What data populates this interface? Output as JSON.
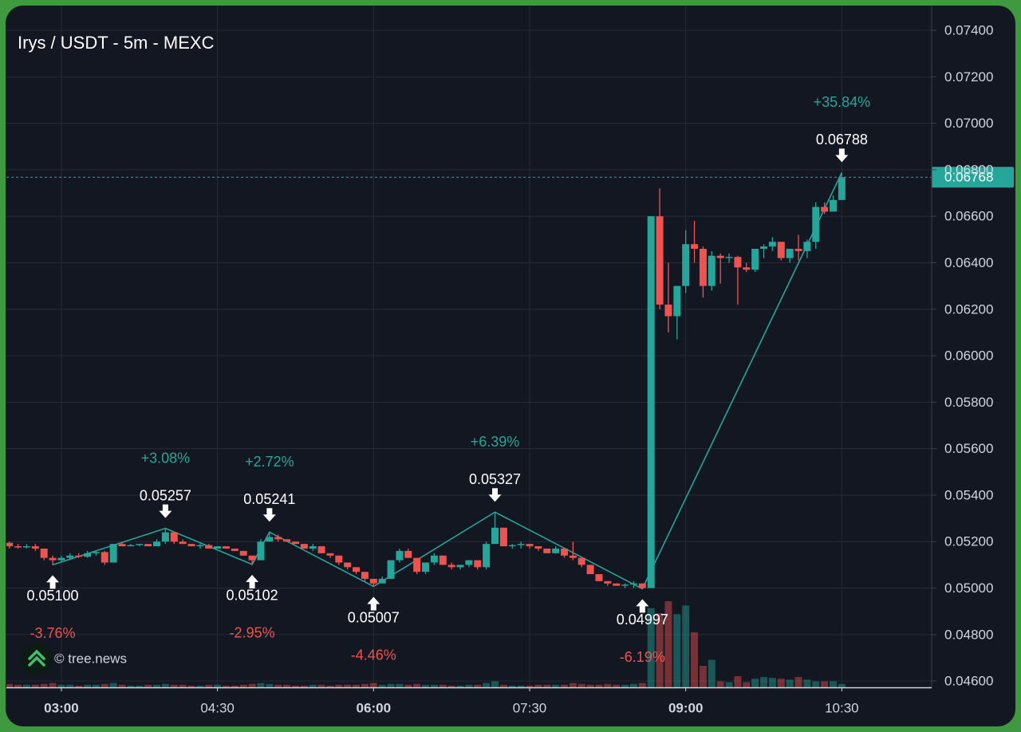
{
  "chart_data": {
    "type": "candlestick",
    "title": "Irys / USDT - 5m - MEXC",
    "watermark": "© tree.news",
    "up_color": "#26a69a",
    "down_color": "#ef5350",
    "xlim": [
      148.3,
      681.8
    ],
    "xticks": [
      {
        "value": 180,
        "label": "03:00"
      },
      {
        "value": 270,
        "label": "04:30"
      },
      {
        "value": 360,
        "label": "06:00"
      },
      {
        "value": 450,
        "label": "07:30"
      },
      {
        "value": 540,
        "label": "09:00"
      },
      {
        "value": 630,
        "label": "10:30"
      }
    ],
    "ylim": [
      0.04573,
      0.07503
    ],
    "yticks": [
      {
        "value": 0.046,
        "label": "0.04600"
      },
      {
        "value": 0.048,
        "label": "0.04800"
      },
      {
        "value": 0.05,
        "label": "0.05000"
      },
      {
        "value": 0.052,
        "label": "0.05200"
      },
      {
        "value": 0.054,
        "label": "0.05400"
      },
      {
        "value": 0.056,
        "label": "0.05600"
      },
      {
        "value": 0.058,
        "label": "0.05800"
      },
      {
        "value": 0.06,
        "label": "0.06000"
      },
      {
        "value": 0.062,
        "label": "0.06200"
      },
      {
        "value": 0.064,
        "label": "0.06400"
      },
      {
        "value": 0.066,
        "label": "0.06600"
      },
      {
        "value": 0.068,
        "label": "0.06800"
      },
      {
        "value": 0.07,
        "label": "0.07000"
      },
      {
        "value": 0.072,
        "label": "0.07200"
      },
      {
        "value": 0.074,
        "label": "0.07400"
      }
    ],
    "grid": true,
    "x": [
      150,
      155,
      160,
      165,
      170,
      175,
      180,
      185,
      190,
      195,
      200,
      205,
      210,
      215,
      220,
      225,
      230,
      235,
      240,
      245,
      250,
      255,
      260,
      265,
      270,
      275,
      280,
      285,
      290,
      295,
      300,
      305,
      310,
      315,
      320,
      325,
      330,
      335,
      340,
      345,
      350,
      355,
      360,
      365,
      370,
      375,
      380,
      385,
      390,
      395,
      400,
      405,
      410,
      415,
      420,
      425,
      430,
      435,
      440,
      445,
      450,
      455,
      460,
      465,
      470,
      475,
      480,
      485,
      490,
      495,
      500,
      505,
      510,
      515,
      520,
      525,
      530,
      535,
      540,
      545,
      550,
      555,
      560,
      565,
      570,
      575,
      580,
      585,
      590,
      595,
      600,
      605,
      610,
      615,
      620,
      625,
      630
    ],
    "open": [
      0.05195,
      0.0518,
      0.05175,
      0.0518,
      0.0517,
      0.0513,
      0.0512,
      0.0513,
      0.0514,
      0.05135,
      0.0515,
      0.05155,
      0.0511,
      0.0519,
      0.0518,
      0.05185,
      0.0519,
      0.0518,
      0.052,
      0.0524,
      0.052,
      0.0519,
      0.0518,
      0.05185,
      0.0517,
      0.0518,
      0.0517,
      0.0516,
      0.0514,
      0.0512,
      0.052,
      0.0522,
      0.0521,
      0.052,
      0.0519,
      0.0517,
      0.0518,
      0.0515,
      0.0514,
      0.0511,
      0.0509,
      0.0507,
      0.0504,
      0.0502,
      0.0504,
      0.0512,
      0.0516,
      0.0513,
      0.0507,
      0.0511,
      0.0514,
      0.051,
      0.0509,
      0.051,
      0.0512,
      0.0509,
      0.0519,
      0.0526,
      0.0518,
      0.05185,
      0.0519,
      0.0518,
      0.0517,
      0.0515,
      0.0517,
      0.0514,
      0.0513,
      0.051,
      0.0506,
      0.0503,
      0.0502,
      0.0501,
      0.05015,
      0.0502,
      0.05,
      0.066,
      0.0622,
      0.0617,
      0.063,
      0.0648,
      0.0646,
      0.063,
      0.0643,
      0.0642,
      0.06425,
      0.0638,
      0.0637,
      0.0646,
      0.0647,
      0.0649,
      0.0642,
      0.0646,
      0.0645,
      0.0649,
      0.0664,
      0.0662,
      0.0667
    ],
    "high": [
      0.052,
      0.0519,
      0.0519,
      0.0519,
      0.0517,
      0.0514,
      0.0514,
      0.0515,
      0.0515,
      0.0516,
      0.0516,
      0.0516,
      0.0519,
      0.052,
      0.0519,
      0.0519,
      0.0519,
      0.0521,
      0.05257,
      0.0524,
      0.0521,
      0.0519,
      0.0519,
      0.0519,
      0.0518,
      0.0518,
      0.0517,
      0.0516,
      0.0514,
      0.0521,
      0.05241,
      0.0523,
      0.0521,
      0.052,
      0.0519,
      0.0519,
      0.0518,
      0.0515,
      0.0514,
      0.0511,
      0.0509,
      0.0507,
      0.0504,
      0.0505,
      0.0512,
      0.0517,
      0.0517,
      0.0513,
      0.0511,
      0.0515,
      0.0514,
      0.0511,
      0.051,
      0.0512,
      0.0512,
      0.052,
      0.05327,
      0.0526,
      0.0519,
      0.052,
      0.0519,
      0.0518,
      0.0517,
      0.0518,
      0.0517,
      0.052,
      0.0513,
      0.051,
      0.0506,
      0.0503,
      0.0502,
      0.0502,
      0.0503,
      0.0502,
      0.066,
      0.0672,
      0.064,
      0.063,
      0.0654,
      0.0658,
      0.0647,
      0.0645,
      0.0644,
      0.0644,
      0.0643,
      0.064,
      0.0646,
      0.0648,
      0.0651,
      0.0649,
      0.0646,
      0.0652,
      0.065,
      0.0666,
      0.0666,
      0.0669,
      0.06788
    ],
    "low": [
      0.0517,
      0.0517,
      0.0517,
      0.0516,
      0.0512,
      0.051,
      0.0511,
      0.0512,
      0.0513,
      0.0513,
      0.0514,
      0.051,
      0.0511,
      0.0518,
      0.0518,
      0.0518,
      0.0518,
      0.0518,
      0.0519,
      0.0519,
      0.0519,
      0.0518,
      0.0517,
      0.0517,
      0.0517,
      0.0517,
      0.0516,
      0.0514,
      0.05102,
      0.0512,
      0.052,
      0.052,
      0.052,
      0.0519,
      0.0517,
      0.0516,
      0.0515,
      0.0513,
      0.051,
      0.0508,
      0.0506,
      0.0503,
      0.05007,
      0.0502,
      0.0504,
      0.0511,
      0.0513,
      0.0506,
      0.0506,
      0.051,
      0.051,
      0.0508,
      0.0508,
      0.0509,
      0.0508,
      0.0508,
      0.0519,
      0.0518,
      0.0517,
      0.0517,
      0.0517,
      0.0516,
      0.0515,
      0.0515,
      0.0513,
      0.0512,
      0.0509,
      0.0506,
      0.0503,
      0.0501,
      0.0501,
      0.05,
      0.05,
      0.04997,
      0.05,
      0.062,
      0.061,
      0.0607,
      0.0627,
      0.064,
      0.0625,
      0.0628,
      0.0631,
      0.064,
      0.0622,
      0.0636,
      0.0636,
      0.0642,
      0.0645,
      0.0641,
      0.064,
      0.0641,
      0.0642,
      0.0646,
      0.0661,
      0.0662,
      0.0667
    ],
    "close": [
      0.0518,
      0.05175,
      0.0518,
      0.0517,
      0.0513,
      0.0512,
      0.0513,
      0.0514,
      0.05135,
      0.0515,
      0.05155,
      0.0511,
      0.0519,
      0.0518,
      0.05185,
      0.0519,
      0.0518,
      0.052,
      0.0524,
      0.052,
      0.0519,
      0.0518,
      0.05185,
      0.0517,
      0.0518,
      0.0517,
      0.0516,
      0.0514,
      0.0512,
      0.052,
      0.0522,
      0.0521,
      0.052,
      0.0519,
      0.0517,
      0.0518,
      0.0515,
      0.0514,
      0.0511,
      0.0509,
      0.0507,
      0.0504,
      0.0502,
      0.0504,
      0.0512,
      0.0516,
      0.0513,
      0.0507,
      0.0511,
      0.0514,
      0.051,
      0.0509,
      0.051,
      0.0512,
      0.0509,
      0.0519,
      0.0526,
      0.0518,
      0.05185,
      0.0519,
      0.0518,
      0.0517,
      0.0515,
      0.0517,
      0.0514,
      0.0513,
      0.051,
      0.0506,
      0.0503,
      0.0502,
      0.0501,
      0.05015,
      0.0502,
      0.05,
      0.066,
      0.0622,
      0.0617,
      0.063,
      0.0648,
      0.0646,
      0.063,
      0.0643,
      0.0642,
      0.06425,
      0.0638,
      0.0637,
      0.0646,
      0.0647,
      0.0649,
      0.0642,
      0.0646,
      0.0645,
      0.0649,
      0.0664,
      0.0662,
      0.0667,
      0.06768
    ],
    "volume": [
      4,
      3,
      3,
      3,
      4,
      5,
      3,
      3,
      2,
      3,
      3,
      4,
      5,
      3,
      2,
      2,
      3,
      3,
      4,
      3,
      3,
      2,
      2,
      3,
      3,
      2,
      2,
      3,
      4,
      5,
      4,
      3,
      3,
      2,
      2,
      3,
      3,
      2,
      3,
      3,
      3,
      4,
      5,
      3,
      4,
      4,
      3,
      4,
      3,
      3,
      3,
      2,
      2,
      3,
      3,
      5,
      7,
      3,
      2,
      2,
      2,
      3,
      3,
      3,
      3,
      5,
      4,
      3,
      3,
      4,
      3,
      3,
      4,
      5,
      92,
      86,
      100,
      85,
      95,
      64,
      25,
      32,
      7,
      6,
      13,
      6,
      10,
      12,
      11,
      10,
      9,
      12,
      9,
      7,
      7,
      7,
      4
    ],
    "last_price": {
      "value": 0.06768,
      "label": "0.06768"
    },
    "pivots": {
      "x": [
        175,
        240,
        290,
        300,
        360,
        430,
        515,
        630
      ],
      "values": [
        0.051,
        0.05257,
        0.05102,
        0.05241,
        0.05007,
        0.05327,
        0.04997,
        0.06788
      ],
      "value_labels": [
        "0.05100",
        "0.05257",
        "0.05102",
        "0.05241",
        "0.05007",
        "0.05327",
        "0.04997",
        "0.06788"
      ],
      "changes": [
        -3.76,
        3.08,
        -2.95,
        2.72,
        -4.46,
        6.39,
        -6.19,
        35.84
      ],
      "change_labels": [
        "-3.76%",
        "+3.08%",
        "-2.95%",
        "+2.72%",
        "-4.46%",
        "+6.39%",
        "-6.19%",
        "+35.84%"
      ],
      "color": "#26a69a"
    }
  }
}
